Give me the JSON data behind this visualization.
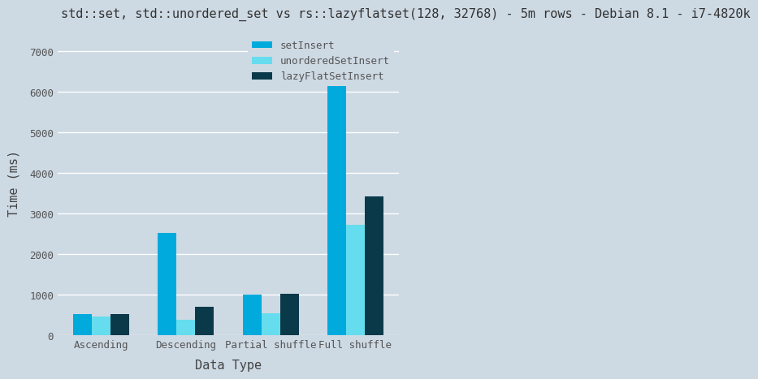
{
  "title": "std::set, std::unordered_set vs rs::lazyflatset(128, 32768) - 5m rows - Debian 8.1 - i7-4820k",
  "categories": [
    "Ascending",
    "Descending",
    "Partial shuffle",
    "Full shuffle"
  ],
  "series": [
    {
      "name": "setInsert",
      "color": "#00aadd",
      "values": [
        520,
        2520,
        1000,
        7050
      ]
    },
    {
      "name": "unorderedSetInsert",
      "color": "#66ddee",
      "values": [
        460,
        380,
        550,
        2720
      ]
    },
    {
      "name": "lazyFlatSetInsert",
      "color": "#0a3a4a",
      "values": [
        530,
        700,
        1020,
        3420
      ]
    }
  ],
  "xlabel": "Data Type",
  "ylabel": "Time (ms)",
  "ylim": [
    0,
    7500
  ],
  "yticks": [
    0,
    1000,
    2000,
    3000,
    4000,
    5000,
    6000,
    7000
  ],
  "background_color": "#cdd9e3",
  "plot_bg_color": "#cdd9e3",
  "grid_color": "#ffffff",
  "title_fontsize": 11,
  "axis_label_fontsize": 11,
  "tick_fontsize": 9,
  "legend_fontsize": 9,
  "bar_width": 0.22
}
